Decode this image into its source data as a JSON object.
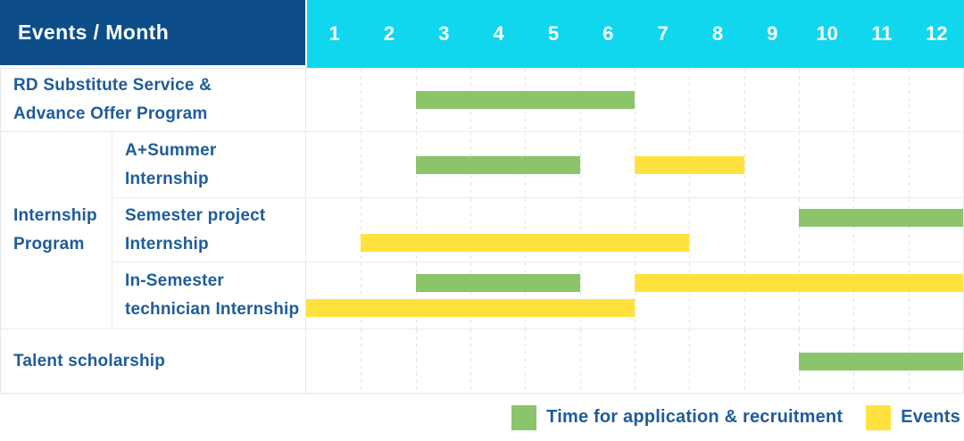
{
  "header": {
    "title": "Events / Month",
    "months": [
      "1",
      "2",
      "3",
      "4",
      "5",
      "6",
      "7",
      "8",
      "9",
      "10",
      "11",
      "12"
    ]
  },
  "row_labels": {
    "rd": {
      "line1": "RD Substitute Service &",
      "line2": "Advance Offer Program"
    },
    "group": {
      "line1": "Internship",
      "line2": "Program"
    },
    "summer": {
      "line1": "A+Summer",
      "line2": "Internship"
    },
    "semester": {
      "line1": "Semester project",
      "line2": "Internship"
    },
    "insemester": {
      "line1": "In-Semester",
      "line2": "technician Internship"
    },
    "talent": {
      "label": "Talent scholarship"
    }
  },
  "legend": {
    "green_label": "Time for application & recruitment",
    "yellow_label": "Events"
  },
  "colors": {
    "header_bg": "#0d4e8a",
    "month_bg": "#10d7ee",
    "label_text": "#1e5c9b",
    "green": "#8bc46a",
    "yellow": "#ffe23e"
  },
  "chart_data": {
    "type": "bar",
    "subtype": "gantt-timeline",
    "title": "Events / Month",
    "x_axis": {
      "label": "Month",
      "ticks": [
        "1",
        "2",
        "3",
        "4",
        "5",
        "6",
        "7",
        "8",
        "9",
        "10",
        "11",
        "12"
      ],
      "range": [
        1,
        12
      ]
    },
    "grid": "vertical-dashed",
    "legend_position": "bottom-right",
    "legend": [
      {
        "label": "Time for application & recruitment",
        "color": "#8bc46a"
      },
      {
        "label": "Events",
        "color": "#ffe23e"
      }
    ],
    "rows": [
      {
        "group": null,
        "label": "RD Substitute Service & Advance Offer Program",
        "bars": [
          {
            "series": "Time for application & recruitment",
            "start_month": 3,
            "end_month": 6,
            "line": 1
          }
        ]
      },
      {
        "group": "Internship Program",
        "label": "A+Summer Internship",
        "bars": [
          {
            "series": "Time for application & recruitment",
            "start_month": 3,
            "end_month": 5,
            "line": 1
          },
          {
            "series": "Events",
            "start_month": 7,
            "end_month": 8,
            "line": 1
          }
        ]
      },
      {
        "group": "Internship Program",
        "label": "Semester project Internship",
        "bars": [
          {
            "series": "Time for application & recruitment",
            "start_month": 10,
            "end_month": 12,
            "line": 1
          },
          {
            "series": "Events",
            "start_month": 2,
            "end_month": 7,
            "line": 2
          }
        ]
      },
      {
        "group": "Internship Program",
        "label": "In-Semester technician Internship",
        "bars": [
          {
            "series": "Time for application & recruitment",
            "start_month": 3,
            "end_month": 5,
            "line": 1
          },
          {
            "series": "Events",
            "start_month": 7,
            "end_month": 12,
            "line": 1
          },
          {
            "series": "Events",
            "start_month": 1,
            "end_month": 6,
            "line": 2
          }
        ]
      },
      {
        "group": null,
        "label": "Talent scholarship",
        "bars": [
          {
            "series": "Time for application & recruitment",
            "start_month": 10,
            "end_month": 12,
            "line": 1
          }
        ]
      }
    ]
  }
}
